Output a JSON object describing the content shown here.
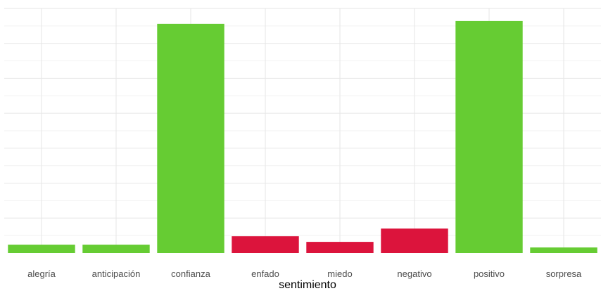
{
  "chart_data": {
    "type": "bar",
    "title": "",
    "xlabel": "sentimiento",
    "ylabel": "",
    "categories": [
      "alegría",
      "anticipación",
      "confianza",
      "enfado",
      "miedo",
      "negativo",
      "positivo",
      "sorpresa"
    ],
    "values": [
      12,
      12,
      328,
      24,
      16,
      35,
      332,
      8
    ],
    "bar_colors": [
      "#66cc33",
      "#66cc33",
      "#66cc33",
      "#dc143c",
      "#dc143c",
      "#dc143c",
      "#66cc33",
      "#66cc33"
    ],
    "ylim": [
      0,
      350
    ],
    "grid": true,
    "legend": "none"
  }
}
